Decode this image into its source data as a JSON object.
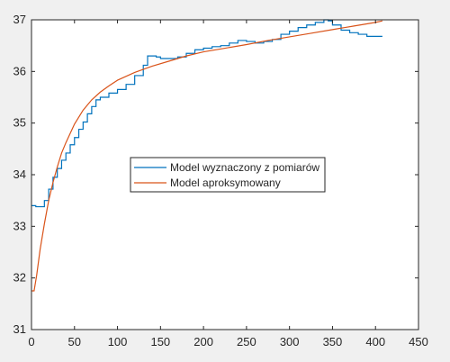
{
  "chart_data": {
    "type": "line",
    "title": "",
    "xlabel": "",
    "ylabel": "",
    "xlim": [
      0,
      450
    ],
    "ylim": [
      31,
      37
    ],
    "xticks": [
      0,
      50,
      100,
      150,
      200,
      250,
      300,
      350,
      400,
      450
    ],
    "yticks": [
      31,
      32,
      33,
      34,
      35,
      36,
      37
    ],
    "grid": false,
    "legend_position": "center",
    "series": [
      {
        "name": "Model wyznaczony z pomiarów",
        "color": "#0072BD",
        "x": [
          0,
          5,
          10,
          15,
          20,
          25,
          30,
          35,
          40,
          45,
          50,
          55,
          60,
          65,
          70,
          75,
          80,
          90,
          100,
          110,
          120,
          130,
          135,
          140,
          145,
          150,
          160,
          170,
          180,
          190,
          200,
          210,
          220,
          230,
          240,
          250,
          260,
          270,
          280,
          290,
          300,
          310,
          320,
          330,
          340,
          345,
          350,
          360,
          370,
          380,
          390,
          400,
          408
        ],
        "y": [
          33.4,
          33.38,
          33.38,
          33.5,
          33.72,
          33.95,
          34.12,
          34.28,
          34.42,
          34.58,
          34.72,
          34.88,
          35.02,
          35.18,
          35.32,
          35.45,
          35.5,
          35.58,
          35.65,
          35.75,
          35.92,
          36.12,
          36.3,
          36.3,
          36.28,
          36.25,
          36.25,
          36.28,
          36.35,
          36.42,
          36.45,
          36.48,
          36.5,
          36.55,
          36.6,
          36.58,
          36.55,
          36.58,
          36.62,
          36.72,
          36.78,
          36.85,
          36.9,
          36.95,
          37.0,
          36.98,
          36.9,
          36.8,
          36.75,
          36.72,
          36.68,
          36.68,
          36.68
        ]
      },
      {
        "name": "Model aproksymowany",
        "color": "#D95319",
        "x": [
          0,
          3,
          6,
          10,
          15,
          20,
          25,
          30,
          35,
          40,
          50,
          60,
          70,
          80,
          90,
          100,
          120,
          140,
          160,
          180,
          200,
          225,
          250,
          275,
          300,
          325,
          350,
          375,
          400,
          408
        ],
        "y": [
          31.75,
          31.75,
          32.05,
          32.55,
          33.05,
          33.5,
          33.85,
          34.15,
          34.42,
          34.62,
          34.98,
          35.25,
          35.45,
          35.6,
          35.72,
          35.83,
          35.98,
          36.1,
          36.2,
          36.3,
          36.38,
          36.45,
          36.52,
          36.6,
          36.67,
          36.74,
          36.81,
          36.88,
          36.95,
          36.98
        ]
      }
    ]
  }
}
